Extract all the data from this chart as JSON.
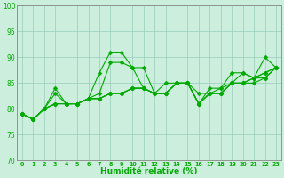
{
  "xlabel": "Humidité relative (%)",
  "xlim": [
    -0.5,
    23.5
  ],
  "ylim": [
    70,
    100
  ],
  "yticks": [
    70,
    75,
    80,
    85,
    90,
    95,
    100
  ],
  "xticks": [
    0,
    1,
    2,
    3,
    4,
    5,
    6,
    7,
    8,
    9,
    10,
    11,
    12,
    13,
    14,
    15,
    16,
    17,
    18,
    19,
    20,
    21,
    22,
    23
  ],
  "bg_color": "#cceedd",
  "grid_color": "#99ccbb",
  "line_color": "#00aa00",
  "markersize": 2.5,
  "linewidth": 0.8,
  "series": [
    [
      79,
      78,
      80,
      84,
      81,
      81,
      82,
      87,
      91,
      91,
      88,
      88,
      83,
      85,
      85,
      85,
      83,
      83,
      84,
      87,
      87,
      86,
      90,
      88
    ],
    [
      79,
      78,
      80,
      83,
      81,
      81,
      82,
      83,
      89,
      89,
      88,
      84,
      83,
      83,
      85,
      85,
      81,
      84,
      84,
      85,
      87,
      86,
      87,
      88
    ],
    [
      79,
      78,
      80,
      81,
      81,
      81,
      82,
      82,
      83,
      83,
      84,
      84,
      83,
      83,
      85,
      85,
      81,
      83,
      83,
      85,
      85,
      86,
      87,
      88
    ],
    [
      79,
      78,
      80,
      81,
      81,
      81,
      82,
      82,
      83,
      83,
      84,
      84,
      83,
      83,
      85,
      85,
      81,
      83,
      83,
      85,
      85,
      86,
      86,
      88
    ],
    [
      79,
      78,
      80,
      81,
      81,
      81,
      82,
      82,
      83,
      83,
      84,
      84,
      83,
      83,
      85,
      85,
      81,
      83,
      83,
      85,
      85,
      85,
      86,
      88
    ]
  ]
}
